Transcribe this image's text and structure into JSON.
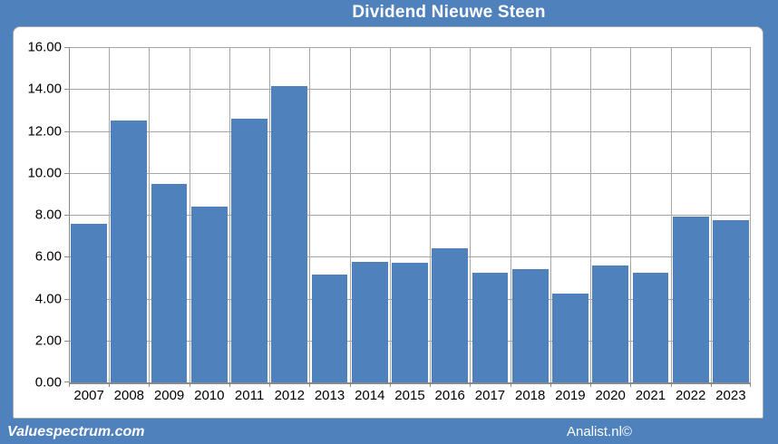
{
  "title": "Dividend Nieuwe Steen",
  "footer": {
    "left": "Valuespectrum.com",
    "right": "Analist.nl©"
  },
  "colors": {
    "frame_blue": "#4f81bd",
    "bar_blue": "#4f81bd",
    "panel_bg": "#ffffff",
    "grid": "#a6a6a6",
    "axis": "#8a8a8a",
    "title_text": "#ffffff",
    "label_text": "#000000"
  },
  "chart_data": {
    "type": "bar",
    "title": "Dividend Nieuwe Steen",
    "categories": [
      "2007",
      "2008",
      "2009",
      "2010",
      "2011",
      "2012",
      "2013",
      "2014",
      "2015",
      "2016",
      "2017",
      "2018",
      "2019",
      "2020",
      "2021",
      "2022",
      "2023"
    ],
    "values": [
      7.55,
      12.5,
      9.45,
      8.4,
      12.6,
      14.15,
      5.15,
      5.75,
      5.7,
      6.4,
      5.25,
      5.4,
      4.25,
      5.6,
      5.25,
      7.9,
      7.75
    ],
    "xlabel": "",
    "ylabel": "",
    "ylim": [
      0,
      16
    ],
    "ytick_step": 2,
    "ytick_labels": [
      "16.00",
      "14.00",
      "12.00",
      "10.00",
      "8.00",
      "6.00",
      "4.00",
      "2.00",
      "0.00"
    ],
    "grid": true,
    "legend": "none"
  }
}
